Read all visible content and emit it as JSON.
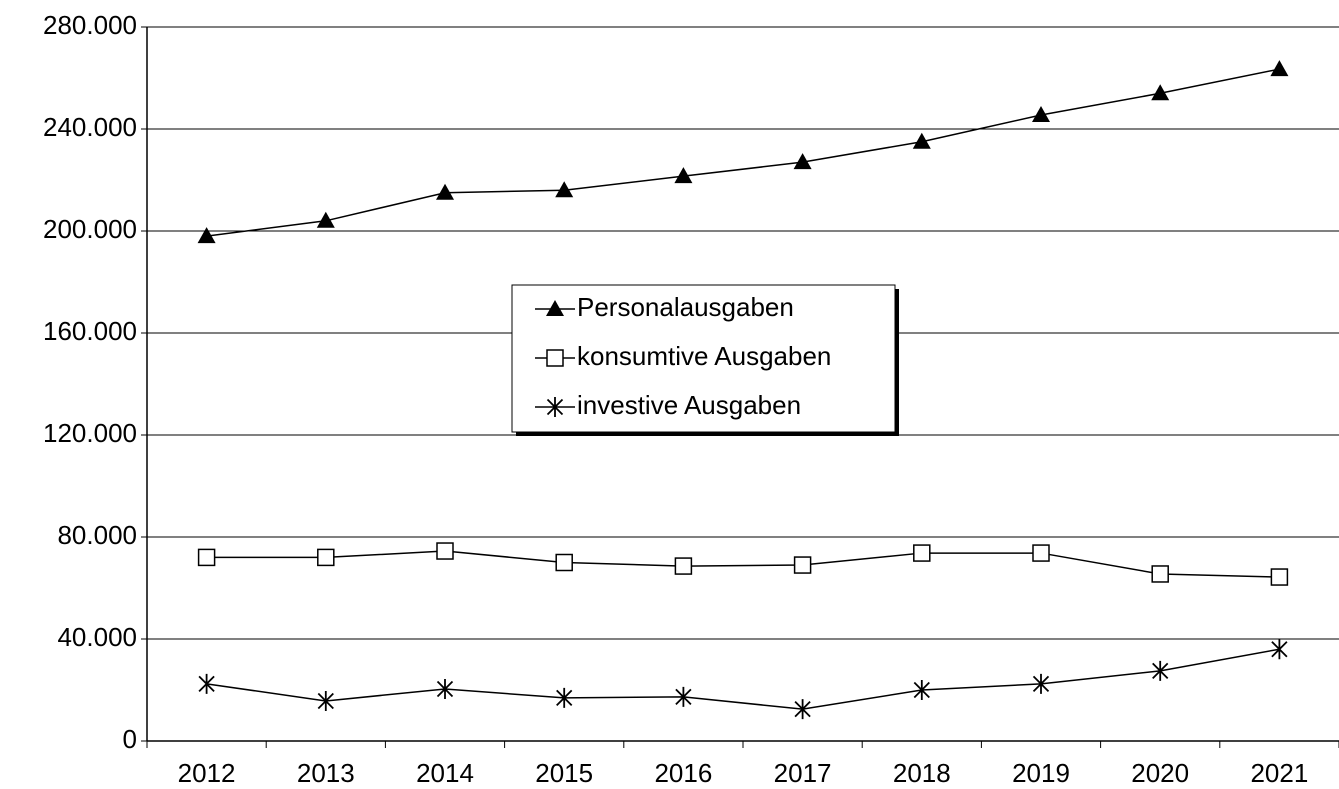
{
  "chart_data": {
    "type": "line",
    "categories": [
      "2012",
      "2013",
      "2014",
      "2015",
      "2016",
      "2017",
      "2018",
      "2019",
      "2020",
      "2021"
    ],
    "series": [
      {
        "name": "Personalausgaben",
        "color": "#000000",
        "marker": "triangle",
        "values": [
          198000,
          204000,
          215000,
          216000,
          221500,
          227000,
          235000,
          245500,
          254000,
          263500
        ]
      },
      {
        "name": "konsumtive Ausgaben",
        "color": "#000000",
        "marker": "square",
        "values": [
          72000,
          72000,
          74500,
          70000,
          68600,
          69000,
          73700,
          73700,
          65500,
          64300
        ]
      },
      {
        "name": "investive Ausgaben",
        "color": "#000000",
        "marker": "star",
        "values": [
          22400,
          15700,
          20400,
          16900,
          17300,
          12500,
          20000,
          22400,
          27500,
          36000
        ]
      }
    ],
    "ylim": [
      0,
      280000
    ],
    "yticks": [
      0,
      {
        "value": 40000,
        "label": "40.000"
      },
      {
        "value": 80000,
        "label": "80.000"
      },
      {
        "value": 120000,
        "label": "120.000"
      },
      {
        "value": 160000,
        "label": "160.000"
      },
      {
        "value": 200000,
        "label": "200.000"
      },
      {
        "value": 240000,
        "label": "240.000"
      },
      {
        "value": 280000,
        "label": "280.000"
      }
    ],
    "grid": true,
    "legend": "center"
  }
}
